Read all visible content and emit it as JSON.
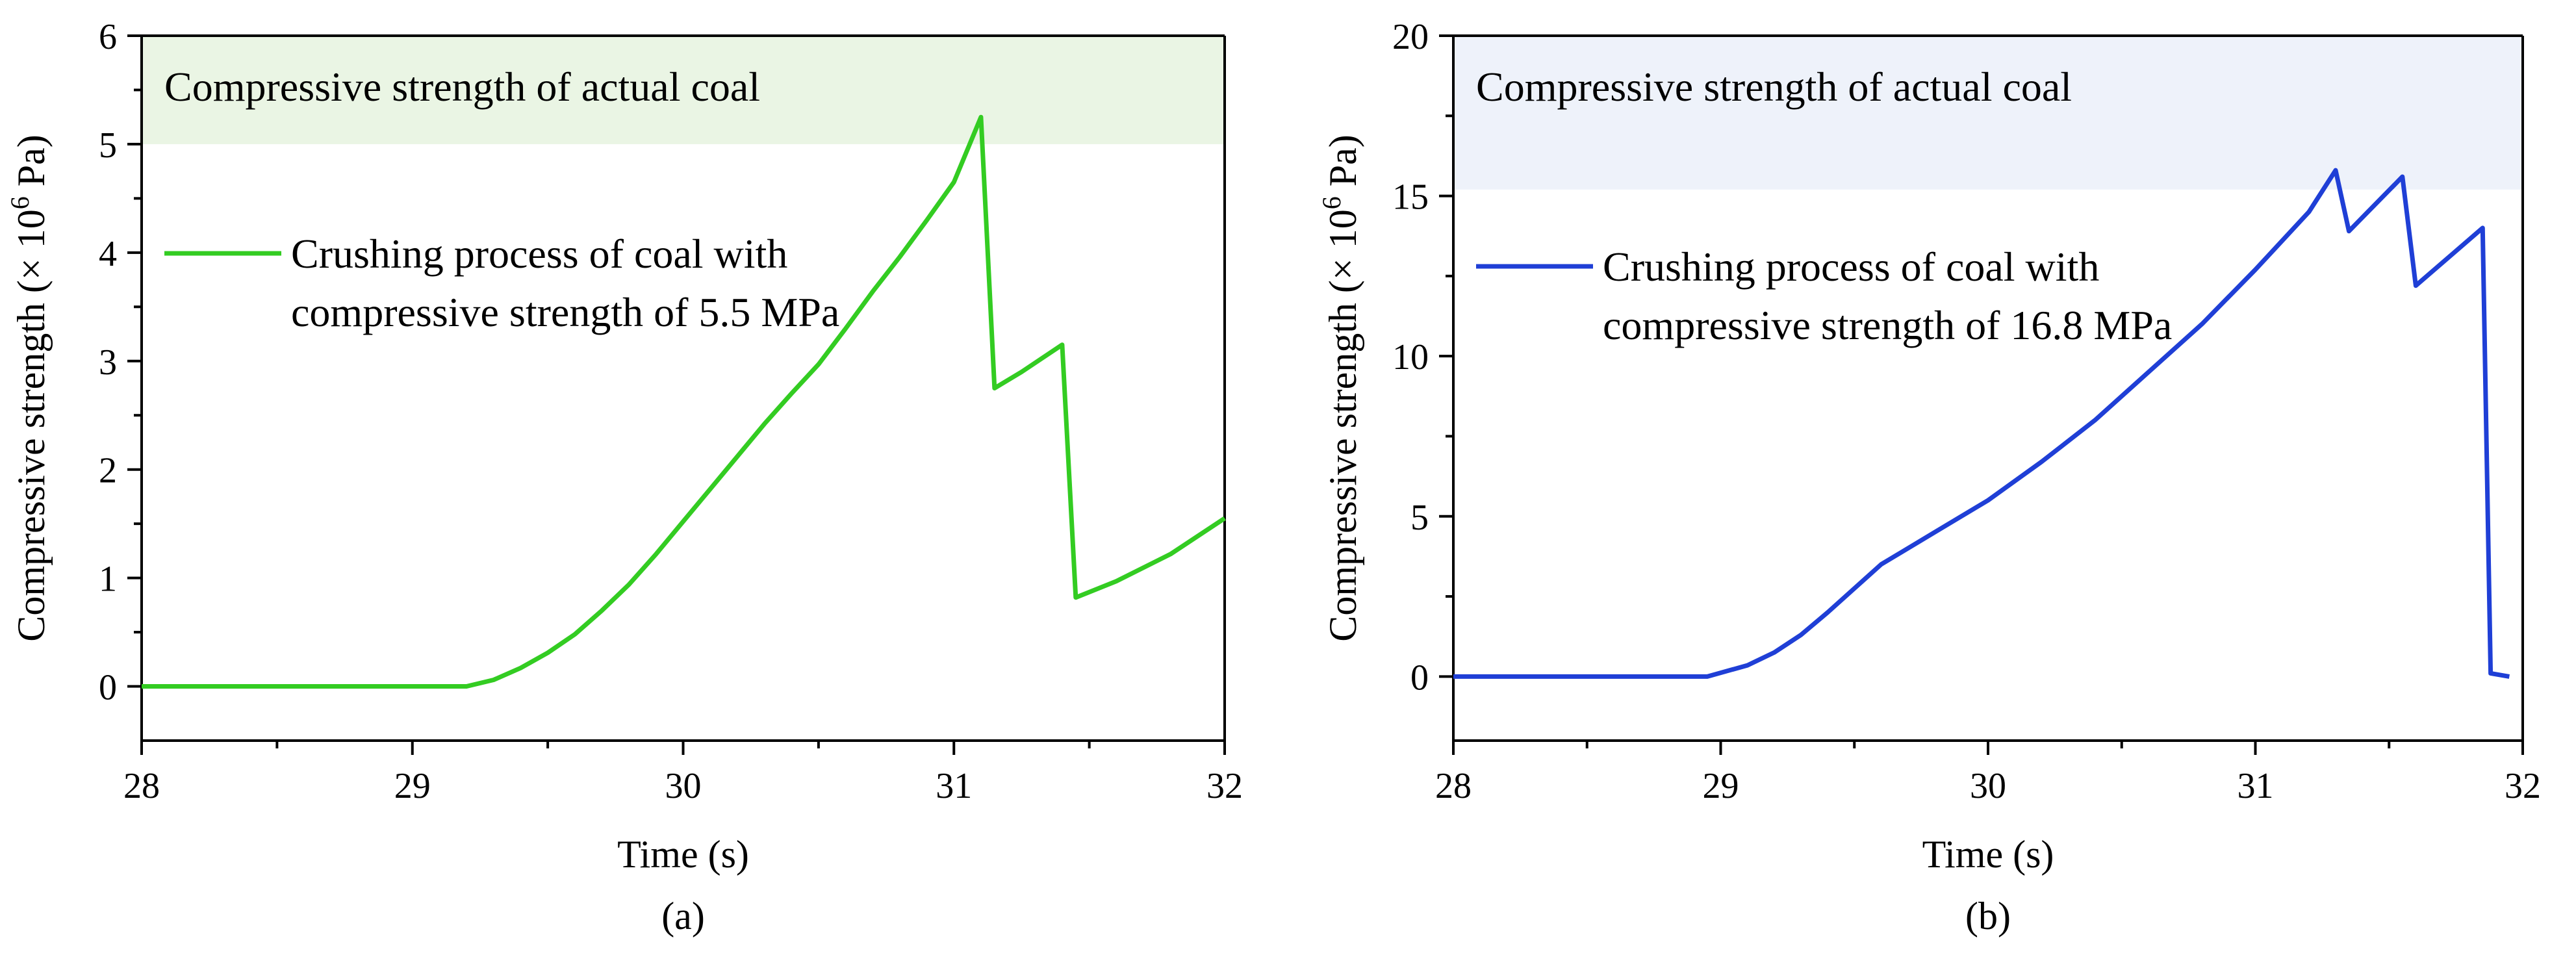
{
  "chart_data": [
    {
      "type": "line",
      "panel_label": "(a)",
      "xlabel": "Time (s)",
      "ylabel_main": "Compressive strength (× 10",
      "ylabel_sup": "6",
      "ylabel_tail": " Pa)",
      "xlim": [
        28,
        32
      ],
      "ylim": [
        -0.5,
        6
      ],
      "xticks": [
        28,
        29,
        30,
        31,
        32
      ],
      "yticks": [
        0,
        1,
        2,
        3,
        4,
        5,
        6
      ],
      "band": {
        "label": "Compressive strength of actual coal",
        "from": 5.0,
        "to": 6.0,
        "color": "#eaf5e4"
      },
      "series": [
        {
          "name_line1": "Crushing process of coal with",
          "name_line2": "compressive strength of 5.5 MPa",
          "color": "#33cc22",
          "x": [
            28.0,
            29.0,
            29.2,
            29.3,
            29.4,
            29.5,
            29.6,
            29.7,
            29.8,
            29.9,
            30.0,
            30.1,
            30.2,
            30.3,
            30.4,
            30.5,
            30.6,
            30.7,
            30.8,
            30.9,
            31.0,
            31.1,
            31.15,
            31.25,
            31.4,
            31.45,
            31.6,
            31.8,
            32.0
          ],
          "y": [
            0,
            0,
            0,
            0.06,
            0.17,
            0.31,
            0.48,
            0.7,
            0.94,
            1.22,
            1.52,
            1.82,
            2.12,
            2.42,
            2.7,
            2.97,
            3.3,
            3.64,
            3.96,
            4.3,
            4.65,
            5.25,
            2.75,
            2.9,
            3.15,
            0.82,
            0.97,
            1.22,
            1.55
          ]
        }
      ]
    },
    {
      "type": "line",
      "panel_label": "(b)",
      "xlabel": "Time (s)",
      "ylabel_main": "Compressive strength (× 10",
      "ylabel_sup": "6",
      "ylabel_tail": " Pa)",
      "xlim": [
        28,
        32
      ],
      "ylim": [
        -2,
        20
      ],
      "xticks": [
        28,
        29,
        30,
        31,
        32
      ],
      "yticks": [
        0,
        5,
        10,
        15,
        20
      ],
      "band": {
        "label": "Compressive strength of actual coal",
        "from": 15.2,
        "to": 20.0,
        "color": "#eef2fa"
      },
      "series": [
        {
          "name_line1": "Crushing process of coal with",
          "name_line2": "compressive strength of 16.8 MPa",
          "color": "#1f3fd6",
          "x": [
            28.0,
            28.95,
            29.1,
            29.2,
            29.3,
            29.4,
            29.5,
            29.6,
            29.8,
            30.0,
            30.2,
            30.4,
            30.6,
            30.8,
            31.0,
            31.2,
            31.3,
            31.35,
            31.55,
            31.6,
            31.85,
            31.88,
            31.95
          ],
          "y": [
            0,
            0,
            0.35,
            0.75,
            1.3,
            2.0,
            2.75,
            3.5,
            4.5,
            5.5,
            6.7,
            8.0,
            9.5,
            11.0,
            12.7,
            14.5,
            15.8,
            13.9,
            15.6,
            12.2,
            14.0,
            0.1,
            0.0
          ]
        }
      ]
    }
  ]
}
